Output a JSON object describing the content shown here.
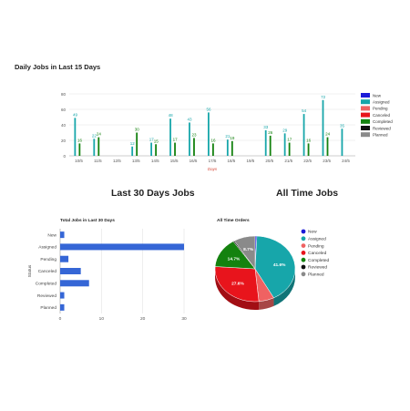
{
  "headings": {
    "daily": "Daily Jobs in Last 15 Days",
    "last30": "Last 30 Days Jobs",
    "alltime": "All Time Jobs"
  },
  "colors": {
    "New": "#1b1bd8",
    "Assigned": "#17a6aa",
    "Pending": "#ef6262",
    "Canceled": "#e8141c",
    "Completed": "#14820f",
    "Reviewed": "#111111",
    "Planned": "#8a8a8a",
    "bar30": "#3566d6"
  },
  "chart_data": [
    {
      "type": "bar",
      "xlabel": "Days",
      "ylabel": "",
      "ylim": [
        0,
        80
      ],
      "yticks": [
        0,
        20,
        40,
        60,
        80
      ],
      "categories": [
        "10/5",
        "11/5",
        "12/5",
        "13/5",
        "14/5",
        "15/5",
        "16/5",
        "17/5",
        "18/5",
        "19/5",
        "20/5",
        "21/5",
        "22/5",
        "23/5",
        "24/5"
      ],
      "legend": [
        "New",
        "Assigned",
        "Pending",
        "Canceled",
        "Completed",
        "Reviewed",
        "Planned"
      ],
      "legend_position": "right",
      "series": [
        {
          "name": "Assigned",
          "values": [
            49,
            22,
            0,
            12,
            17,
            48,
            43,
            56,
            21,
            0,
            33,
            29,
            54,
            72,
            35
          ]
        },
        {
          "name": "Completed",
          "values": [
            16,
            24,
            0,
            30,
            15,
            17,
            23,
            16,
            19,
            0,
            26,
            17,
            16,
            24,
            0
          ]
        }
      ]
    },
    {
      "type": "bar",
      "orientation": "horizontal",
      "title": "Total Jobs in Last 30 Days",
      "ylabel": "Status",
      "xlim": [
        0,
        30
      ],
      "xticks": [
        0,
        10,
        20,
        30
      ],
      "categories": [
        "New",
        "Assigned",
        "Pending",
        "Canceled",
        "Completed",
        "Reviewed",
        "Planned"
      ],
      "values": [
        1,
        30,
        2,
        5,
        7,
        1,
        1
      ]
    },
    {
      "type": "pie",
      "title": "All Time Orders",
      "legend_position": "right",
      "categories": [
        "New",
        "Assigned",
        "Pending",
        "Canceled",
        "Completed",
        "Reviewed",
        "Planned"
      ],
      "values": [
        0.7,
        41.6,
        6.2,
        27.6,
        14.7,
        0.5,
        8.7
      ],
      "labels": [
        "",
        "41.6%",
        "",
        "27.6%",
        "14.7%",
        "",
        "8.7%"
      ]
    }
  ]
}
